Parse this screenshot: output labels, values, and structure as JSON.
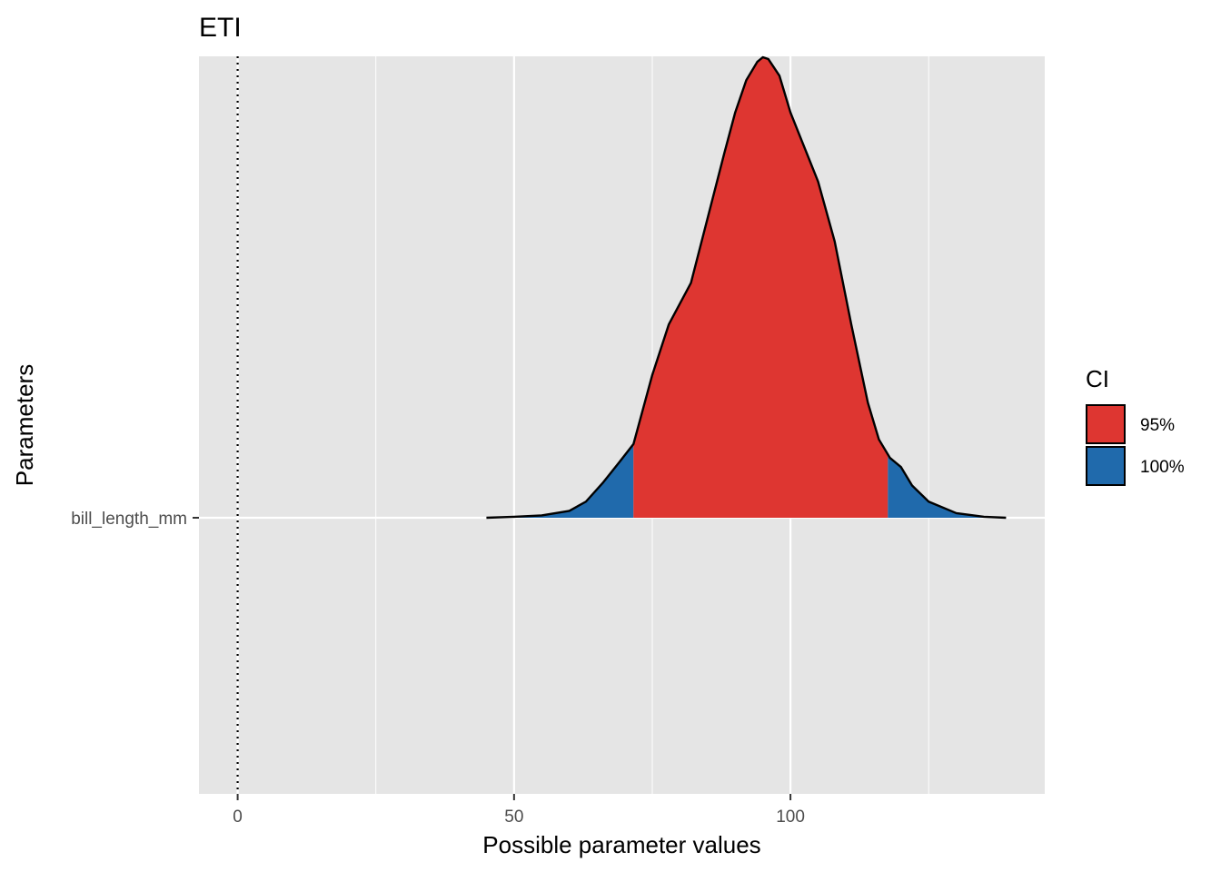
{
  "chart_data": {
    "type": "area",
    "title": "ETI",
    "xlabel": "Possible parameter values",
    "ylabel": "Parameters",
    "xlim": [
      -7,
      146
    ],
    "x_ticks": [
      0,
      50,
      100
    ],
    "x_tick_labels": [
      "0",
      "50",
      "100"
    ],
    "y_categories": [
      "bill_length_mm"
    ],
    "grid": true,
    "reference_line": {
      "x": 0,
      "style": "dotted"
    },
    "density": {
      "parameter": "bill_length_mm",
      "x": [
        45,
        50,
        55,
        60,
        63,
        66,
        69,
        71.6,
        75,
        78,
        82,
        85,
        88,
        90,
        92,
        94,
        95,
        96,
        98,
        100,
        102,
        105,
        108,
        111,
        114,
        116,
        118,
        120,
        122,
        125,
        130,
        135,
        139
      ],
      "y": [
        0,
        0.002,
        0.005,
        0.015,
        0.035,
        0.075,
        0.12,
        0.16,
        0.31,
        0.42,
        0.51,
        0.65,
        0.79,
        0.88,
        0.95,
        0.99,
        1.0,
        0.996,
        0.96,
        0.88,
        0.82,
        0.73,
        0.6,
        0.42,
        0.25,
        0.17,
        0.13,
        0.11,
        0.07,
        0.035,
        0.01,
        0.002,
        0
      ]
    },
    "ci_regions": [
      {
        "name": "95%",
        "from": 71.6,
        "to": 117.6,
        "color": "#de3631"
      },
      {
        "name": "100%",
        "from": 45,
        "to": 139,
        "color": "#206aac"
      }
    ],
    "legend": {
      "title": "CI",
      "position": "right",
      "items": [
        {
          "label": "95%",
          "color": "#de3631"
        },
        {
          "label": "100%",
          "color": "#206aac"
        }
      ]
    },
    "panel_background": "#e5e5e5",
    "grid_color": "#ffffff"
  }
}
